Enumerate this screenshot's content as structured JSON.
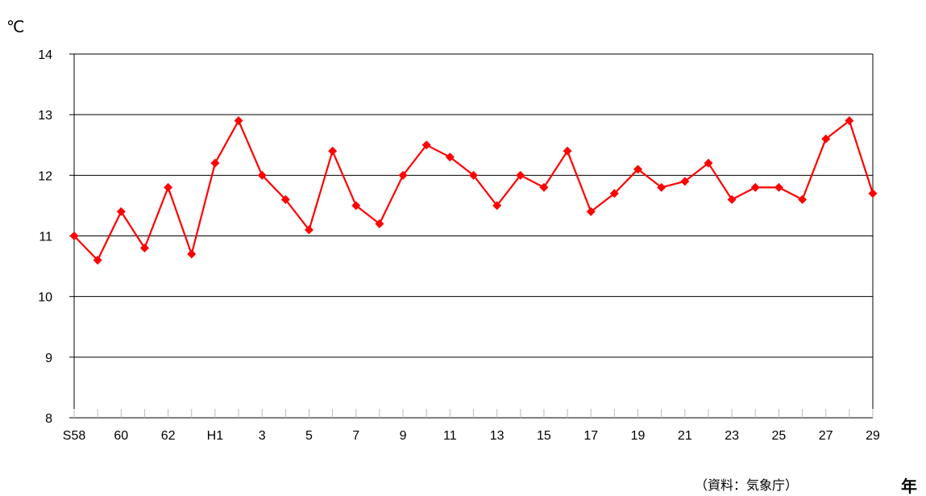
{
  "chart_data": {
    "type": "line",
    "title": "",
    "ylabel": "℃",
    "xlabel": "年",
    "source_note": "（資料：気象庁）",
    "ylim": [
      8,
      14
    ],
    "yticks": [
      "14",
      "13",
      "12",
      "11",
      "10",
      "9",
      "8"
    ],
    "grid": true,
    "colors": {
      "line": "#ff0000",
      "marker": "#ff0000",
      "grid": "#000000"
    },
    "x_labels": [
      "S58",
      "",
      "60",
      "",
      "62",
      "",
      "H1",
      "",
      "3",
      "",
      "5",
      "",
      "7",
      "",
      "9",
      "",
      "11",
      "",
      "13",
      "",
      "15",
      "",
      "17",
      "",
      "19",
      "",
      "21",
      "",
      "23",
      "",
      "25",
      "",
      "27",
      "",
      "29"
    ],
    "series": [
      {
        "values": [
          11.0,
          10.6,
          11.4,
          10.8,
          11.8,
          10.7,
          12.2,
          12.9,
          12.0,
          11.6,
          11.1,
          12.4,
          11.5,
          11.2,
          12.0,
          12.5,
          12.3,
          12.0,
          11.5,
          12.0,
          11.8,
          12.4,
          11.4,
          11.7,
          12.1,
          11.8,
          11.9,
          12.2,
          11.6,
          11.8,
          11.8,
          11.6,
          12.6,
          12.9,
          11.7
        ]
      }
    ]
  }
}
